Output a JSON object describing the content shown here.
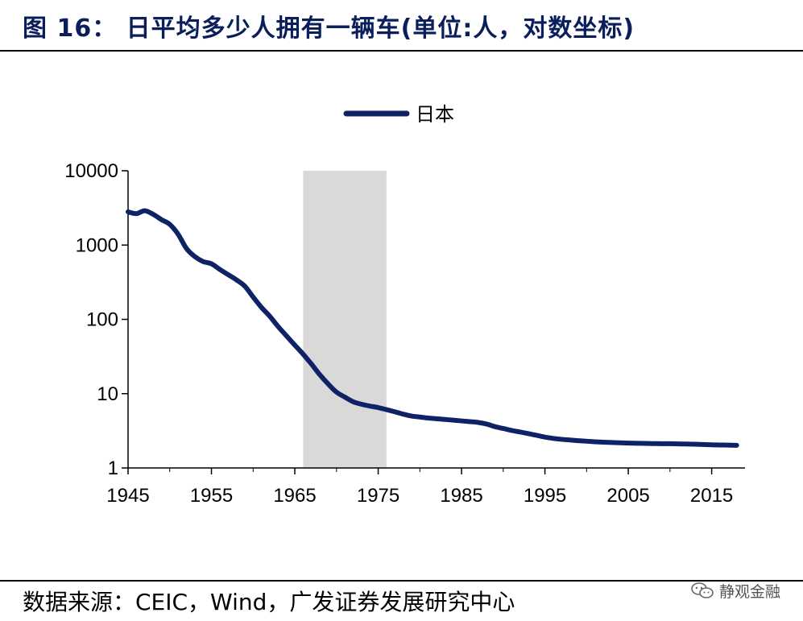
{
  "header": {
    "title": "图 16： 日平均多少人拥有一辆车(单位:人，对数坐标)"
  },
  "footer": {
    "source": "数据来源：CEIC，Wind，广发证券发展研究中心",
    "watermark": "静观金融",
    "watermark_icon": "wechat-icon"
  },
  "chart_data": {
    "type": "line",
    "title": "",
    "xlabel": "",
    "ylabel": "",
    "yscale": "log",
    "ylim": [
      1,
      10000
    ],
    "xlim": [
      1945,
      2019
    ],
    "y_ticks": [
      "1",
      "10",
      "100",
      "1000",
      "10000"
    ],
    "x_ticks": [
      "1945",
      "1955",
      "1965",
      "1975",
      "1985",
      "1995",
      "2005",
      "2015"
    ],
    "grid": false,
    "legend_position": "top-center",
    "shaded_region": {
      "x_start": 1966,
      "x_end": 1976,
      "color": "#d9d9d9"
    },
    "series": [
      {
        "name": "日本",
        "color": "#0f2266",
        "x": [
          1945,
          1946,
          1947,
          1948,
          1949,
          1950,
          1951,
          1952,
          1953,
          1954,
          1955,
          1956,
          1957,
          1958,
          1959,
          1960,
          1961,
          1962,
          1963,
          1964,
          1965,
          1966,
          1967,
          1968,
          1969,
          1970,
          1971,
          1972,
          1973,
          1974,
          1975,
          1976,
          1977,
          1978,
          1979,
          1980,
          1981,
          1982,
          1983,
          1984,
          1985,
          1986,
          1987,
          1988,
          1989,
          1990,
          1991,
          1992,
          1993,
          1994,
          1995,
          1996,
          1997,
          1998,
          1999,
          2000,
          2001,
          2002,
          2003,
          2004,
          2005,
          2006,
          2007,
          2008,
          2009,
          2010,
          2011,
          2012,
          2013,
          2014,
          2015,
          2016,
          2017,
          2018
        ],
        "values": [
          2800,
          2650,
          2900,
          2600,
          2200,
          1900,
          1400,
          900,
          700,
          600,
          560,
          470,
          400,
          340,
          280,
          200,
          145,
          110,
          80,
          60,
          45,
          34,
          25,
          18,
          13.5,
          10.5,
          9,
          7.8,
          7.2,
          6.8,
          6.5,
          6.1,
          5.7,
          5.3,
          5.0,
          4.85,
          4.7,
          4.6,
          4.5,
          4.4,
          4.3,
          4.2,
          4.1,
          3.9,
          3.6,
          3.4,
          3.2,
          3.05,
          2.9,
          2.75,
          2.6,
          2.5,
          2.43,
          2.38,
          2.33,
          2.29,
          2.25,
          2.22,
          2.2,
          2.18,
          2.16,
          2.15,
          2.14,
          2.13,
          2.12,
          2.12,
          2.11,
          2.1,
          2.09,
          2.07,
          2.05,
          2.04,
          2.03,
          2.02
        ]
      }
    ]
  }
}
